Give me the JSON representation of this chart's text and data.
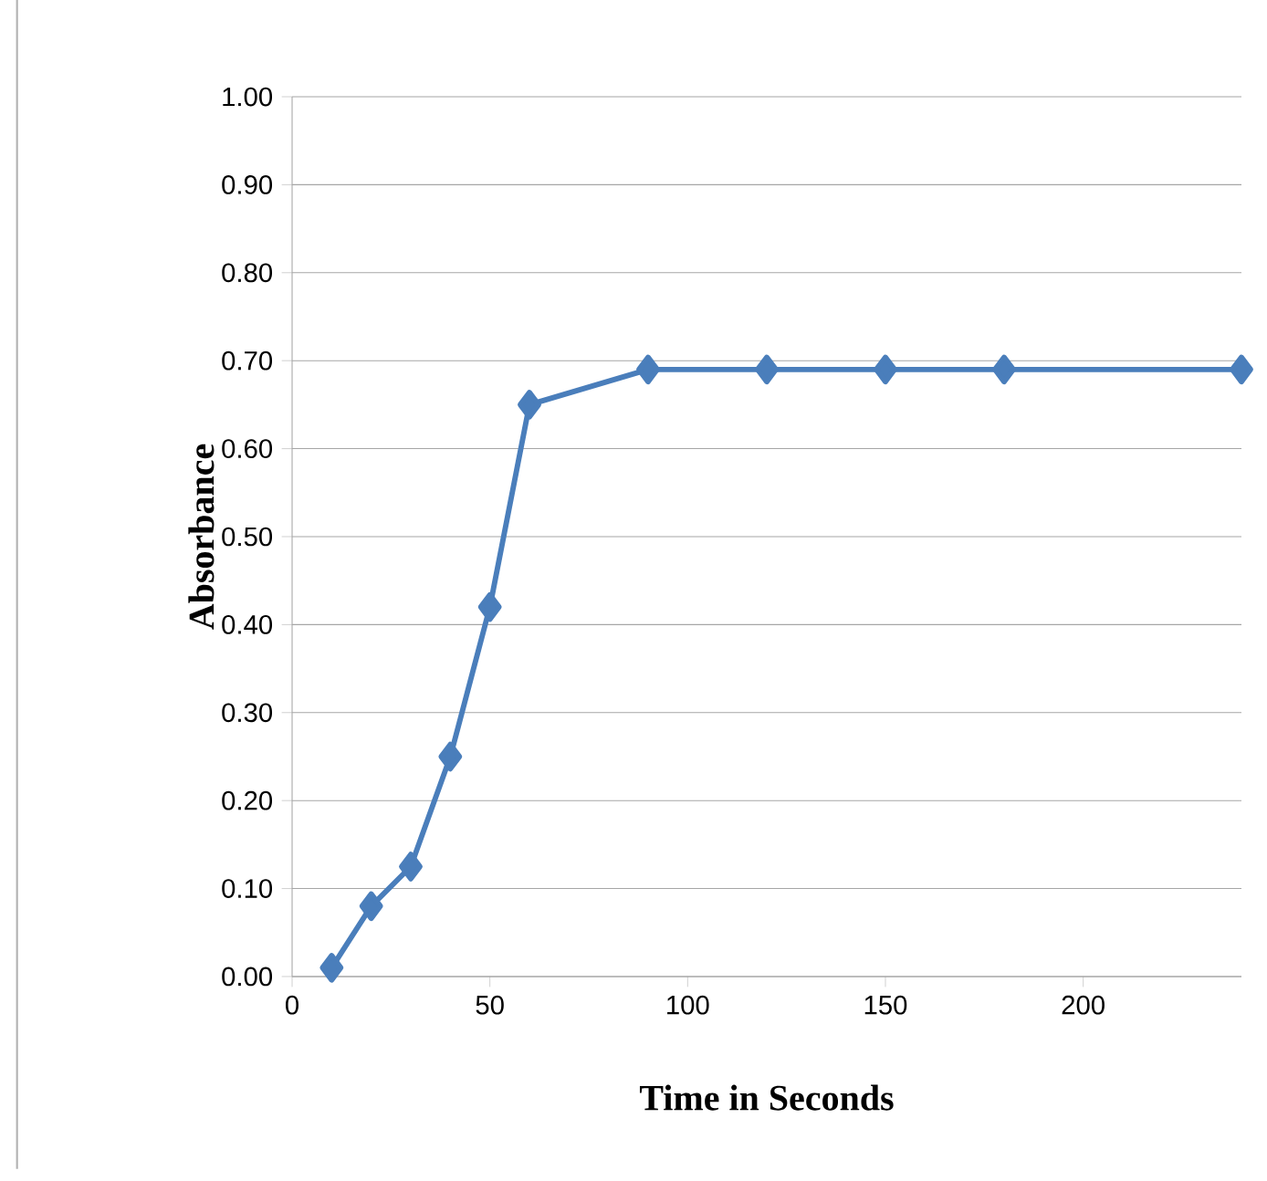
{
  "chart_data": {
    "type": "line",
    "xlabel": "Time in Seconds",
    "ylabel": "Absorbance",
    "x": [
      10,
      20,
      30,
      40,
      50,
      60,
      90,
      120,
      150,
      180,
      240
    ],
    "values": [
      0.01,
      0.08,
      0.125,
      0.25,
      0.42,
      0.65,
      0.69,
      0.69,
      0.69,
      0.69,
      0.69
    ],
    "color": "#4a7ebb",
    "marker": "diamond",
    "line_style": "solid",
    "grid": "y",
    "xlim": [
      0,
      240
    ],
    "xticks": [
      0,
      50,
      100,
      150,
      200
    ],
    "ylim": [
      0,
      1
    ],
    "yticks": [
      {
        "value": 0,
        "label": "0.00"
      },
      {
        "value": 0.1,
        "label": "0.10"
      },
      {
        "value": 0.2,
        "label": "0.20"
      },
      {
        "value": 0.3,
        "label": "0.30"
      },
      {
        "value": 0.4,
        "label": "0.40"
      },
      {
        "value": 0.5,
        "label": "0.50"
      },
      {
        "value": 0.6,
        "label": "0.60"
      },
      {
        "value": 0.7,
        "label": "0.70"
      },
      {
        "value": 0.8,
        "label": "0.80"
      },
      {
        "value": 0.9,
        "label": "0.90"
      },
      {
        "value": 1.0,
        "label": "1.00"
      }
    ]
  }
}
